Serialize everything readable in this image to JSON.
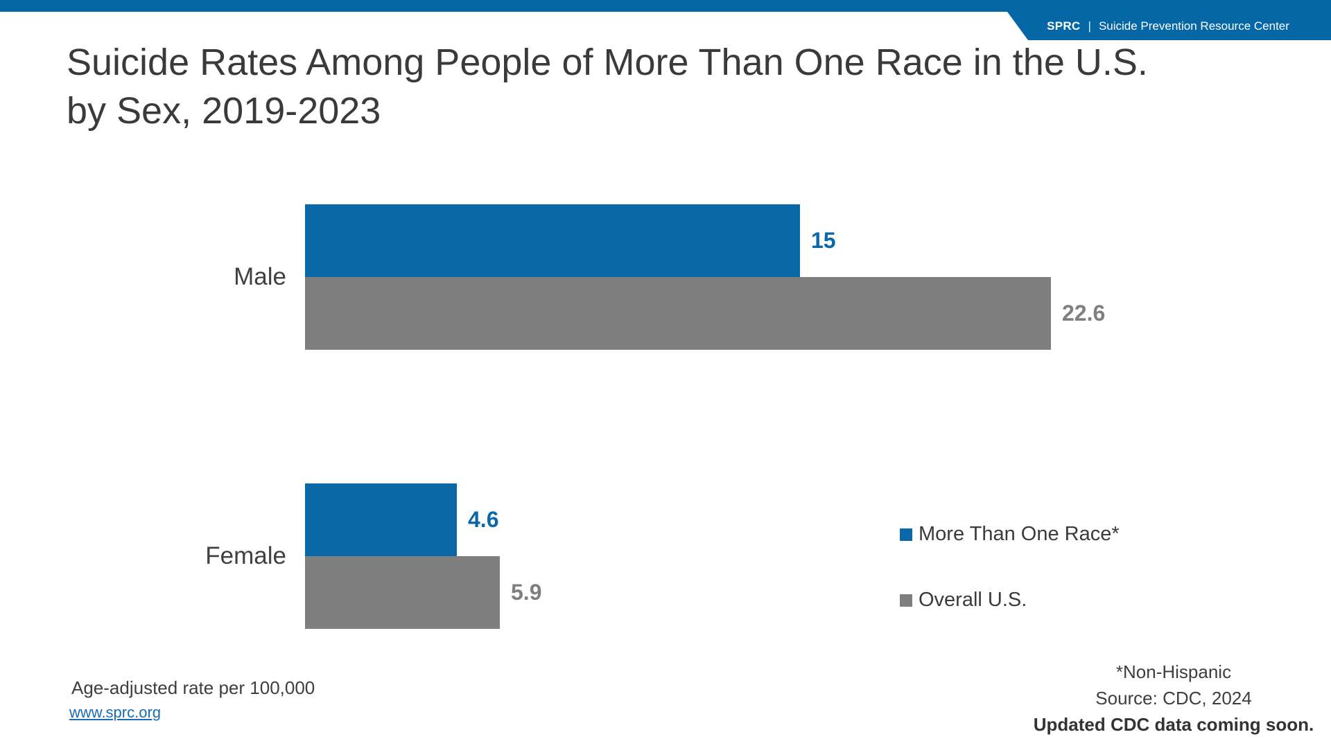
{
  "banner": {
    "brand": "SPRC",
    "separator": "|",
    "org_name": "Suicide Prevention Resource Center",
    "background": "#0667A7",
    "text_color": "#FFFFFF"
  },
  "title": {
    "line1": "Suicide Rates Among People of More Than One Race in the U.S.",
    "line2": "by Sex, 2019-2023"
  },
  "chart_data": {
    "type": "bar",
    "orientation": "horizontal",
    "title": "Suicide Rates Among People of More Than One Race in the U.S. by Sex, 2019-2023",
    "categories": [
      "Male",
      "Female"
    ],
    "series": [
      {
        "name": "More Than One Race*",
        "color": "#0A67A8",
        "values": [
          15,
          4.6
        ],
        "value_labels": [
          "15",
          "4.6"
        ]
      },
      {
        "name": "Overall U.S.",
        "color": "#7F7F7F",
        "values": [
          22.6,
          5.9
        ],
        "value_labels": [
          "22.6",
          "5.9"
        ]
      }
    ],
    "xlabel": "Age-adjusted rate per 100,000",
    "xlim": [
      0,
      23
    ],
    "grid": false,
    "axis_lines": false,
    "legend_position": "center-right",
    "value_label_style": "bold, series-colored, right of bar end"
  },
  "legend": {
    "items": [
      {
        "label": "More Than One Race*",
        "color": "#0A67A8"
      },
      {
        "label": "Overall U.S.",
        "color": "#7F7F7F"
      }
    ]
  },
  "footnote_left": {
    "note": "Age-adjusted rate per 100,000",
    "link": "www.sprc.org"
  },
  "footnote_right": {
    "line1": "*Non-Hispanic",
    "line2": "Source: CDC, 2024",
    "line3": "Updated CDC data coming soon."
  },
  "colors": {
    "brand_blue": "#0667A7",
    "bar_blue": "#0A67A8",
    "bar_gray": "#7F7F7F",
    "title_text": "#3A3A3A",
    "link_blue": "#1A6BB5"
  }
}
